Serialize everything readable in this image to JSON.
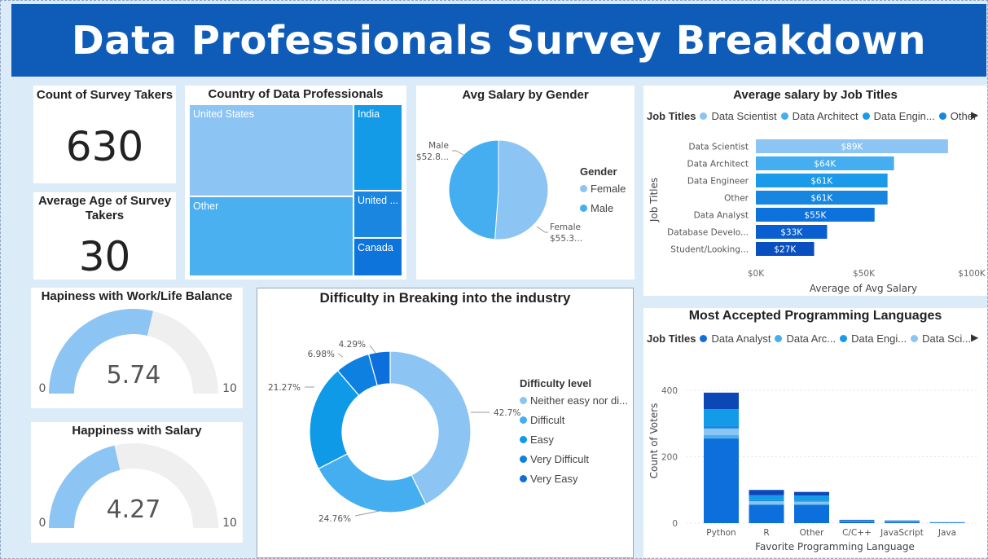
{
  "title": "Data Professionals Survey Breakdown",
  "kpis": {
    "count_title": "Count of Survey Takers",
    "count_value": "630",
    "age_title": "Average Age of Survey Takers",
    "age_value": "30"
  },
  "gauges": [
    {
      "title": "Hapiness with Work/Life Balance",
      "value": 5.74,
      "value_label": "5.74",
      "min_label": "0",
      "max_label": "10"
    },
    {
      "title": "Happiness with Salary",
      "value": 4.27,
      "value_label": "4.27",
      "min_label": "0",
      "max_label": "10"
    }
  ],
  "treemap": {
    "title": "Country of Data Professionals",
    "items": [
      {
        "label": "United States",
        "color": "#8cc4f3"
      },
      {
        "label": "India",
        "color": "#149be8"
      },
      {
        "label": "Other",
        "color": "#4ab0f0"
      },
      {
        "label": "United ...",
        "color": "#1a86e0"
      },
      {
        "label": "Canada",
        "color": "#0d74dc"
      }
    ]
  },
  "colors": {
    "banner": "#0e5cb8",
    "light": "#8cc4f3",
    "mid": "#45aef0",
    "blue": "#0f9ae8",
    "dark": "#0d72dc",
    "darkest": "#0a4fc0"
  },
  "chart_data": [
    {
      "type": "pie",
      "title": "Avg Salary by Gender",
      "legend_title": "Gender",
      "legend_position": "right",
      "categories": [
        "Female",
        "Male"
      ],
      "values": [
        55.3,
        52.8
      ],
      "slice_labels": [
        "Female\n$55.3...",
        "Male\n$52.8..."
      ],
      "colors": [
        "#8cc4f3",
        "#45aef0"
      ]
    },
    {
      "type": "bar",
      "orientation": "horizontal",
      "title": "Average salary by Job Titles",
      "legend_title": "Job Titles",
      "legend": [
        "Data Scientist",
        "Data Architect",
        "Data Engin...",
        "Other"
      ],
      "legend_colors": [
        "#8cc4f3",
        "#45aef0",
        "#1a9ae8",
        "#1686e0"
      ],
      "categories": [
        "Data Scientist",
        "Data Architect",
        "Data Engineer",
        "Other",
        "Data Analyst",
        "Database Develo...",
        "Student/Looking..."
      ],
      "values": [
        89,
        64,
        61,
        61,
        55,
        33,
        27
      ],
      "data_labels": [
        "$89K",
        "$64K",
        "$61K",
        "$61K",
        "$55K",
        "$33K",
        "$27K"
      ],
      "colors": [
        "#8cc4f3",
        "#45aef0",
        "#1a9ae8",
        "#1686e0",
        "#0d72dc",
        "#0a5fd0",
        "#0a4fc0"
      ],
      "xlabel": "Average of Avg Salary",
      "ylabel": "Job Titles",
      "xticks": [
        "$0K",
        "$50K",
        "$100K"
      ],
      "xlim": [
        0,
        100
      ]
    },
    {
      "type": "pie",
      "subtype": "donut",
      "title": "Difficulty in Breaking into the industry",
      "legend_title": "Difficulty level",
      "legend_position": "right",
      "categories": [
        "Neither easy nor di...",
        "Difficult",
        "Easy",
        "Very Difficult",
        "Very Easy"
      ],
      "values": [
        42.7,
        24.76,
        21.27,
        6.98,
        4.29
      ],
      "data_labels": [
        "42.7%",
        "24.76%",
        "21.27%",
        "6.98%",
        "4.29%"
      ],
      "colors": [
        "#8cc4f3",
        "#45aef0",
        "#0f9ae8",
        "#0d80e0",
        "#0d6fdc"
      ]
    },
    {
      "type": "bar",
      "stacked": true,
      "title": "Most Accepted Programming Languages",
      "legend_title": "Job Titles",
      "legend": [
        "Data Analyst",
        "Data Arc...",
        "Data Engi...",
        "Data Sci..."
      ],
      "legend_colors": [
        "#0d6fdc",
        "#45aef0",
        "#1a9ae8",
        "#8cc4f3"
      ],
      "categories": [
        "Python",
        "R",
        "Other",
        "C/C++",
        "JavaScript",
        "Java"
      ],
      "series": [
        {
          "values": [
            255,
            55,
            55,
            5,
            4,
            2
          ],
          "color": "#0d6fdc"
        },
        {
          "values": [
            10,
            3,
            3,
            0,
            0,
            0
          ],
          "color": "#4ab0f0"
        },
        {
          "values": [
            20,
            8,
            7,
            1,
            1,
            0
          ],
          "color": "#8cc4f3"
        },
        {
          "values": [
            8,
            3,
            3,
            0,
            0,
            0
          ],
          "color": "#1a86e0"
        },
        {
          "values": [
            50,
            15,
            15,
            2,
            2,
            1
          ],
          "color": "#149be8"
        },
        {
          "values": [
            50,
            16,
            11,
            2,
            1,
            0
          ],
          "color": "#0c47b8"
        }
      ],
      "xlabel": "Favorite Programming Language",
      "ylabel": "Count of Voters",
      "yticks": [
        "0",
        "200",
        "400"
      ],
      "ylim": [
        0,
        440
      ]
    }
  ]
}
